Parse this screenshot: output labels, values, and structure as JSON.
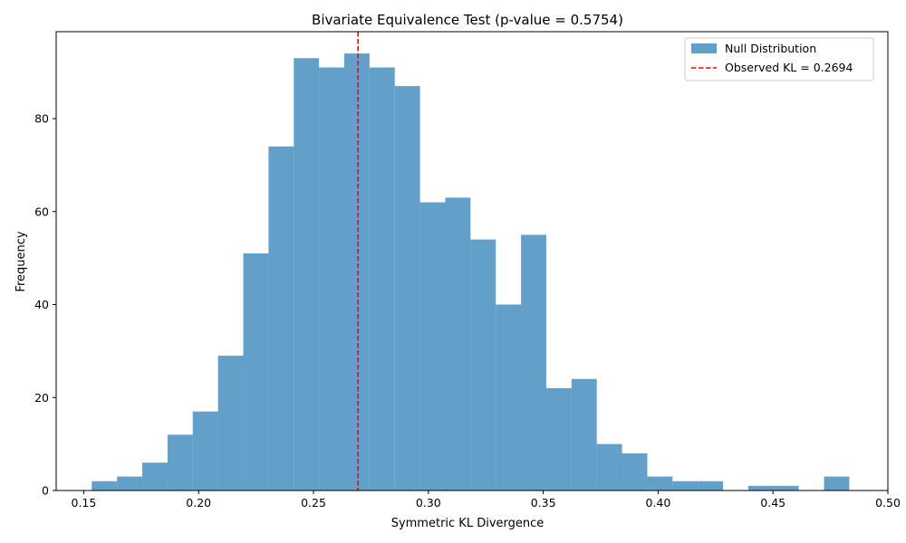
{
  "chart_data": {
    "type": "bar",
    "title": "Bivariate Equivalence Test (p-value = 0.5754)",
    "xlabel": "Symmetric KL Divergence",
    "ylabel": "Frequency",
    "xlim": [
      0.138,
      0.5
    ],
    "ylim": [
      0,
      98.7
    ],
    "xticks": [
      0.15,
      0.2,
      0.25,
      0.3,
      0.35,
      0.4,
      0.45,
      0.5
    ],
    "xtick_labels": [
      "0.15",
      "0.20",
      "0.25",
      "0.30",
      "0.35",
      "0.40",
      "0.45",
      "0.50"
    ],
    "yticks": [
      0,
      20,
      40,
      60,
      80
    ],
    "ytick_labels": [
      "0",
      "20",
      "40",
      "60",
      "80"
    ],
    "grid": false,
    "legend_position": "top-right",
    "series": [
      {
        "name": "Null Distribution",
        "color": "#1f77b4",
        "opacity": 0.7,
        "bin_start": 0.1535,
        "bin_width": 0.01099,
        "counts": [
          2,
          3,
          6,
          12,
          17,
          29,
          51,
          74,
          93,
          91,
          94,
          91,
          87,
          62,
          63,
          54,
          40,
          55,
          22,
          24,
          10,
          8,
          3,
          2,
          2,
          0,
          1,
          1,
          0,
          3
        ]
      }
    ],
    "vline": {
      "name": "Observed KL = 0.2694",
      "value": 0.2694,
      "color": "#ff0000",
      "style": "dashed"
    }
  }
}
